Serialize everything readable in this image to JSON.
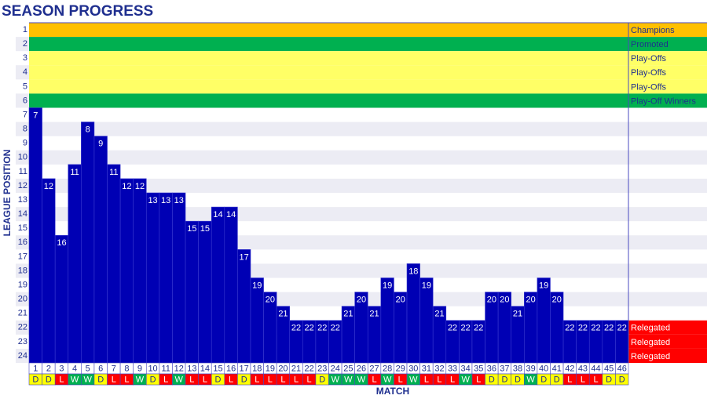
{
  "chart_data": {
    "type": "position-bar",
    "title": "SEASON PROGRESS",
    "x_label": "MATCH",
    "y_label": "LEAGUE POSITION",
    "categories": [
      1,
      2,
      3,
      4,
      5,
      6,
      7,
      8,
      9,
      10,
      11,
      12,
      13,
      14,
      15,
      16,
      17,
      18,
      19,
      20,
      21,
      22,
      23,
      24,
      25,
      26,
      27,
      28,
      29,
      30,
      31,
      32,
      33,
      34,
      35,
      36,
      37,
      38,
      39,
      40,
      41,
      42,
      43,
      44,
      45,
      46
    ],
    "values": [
      7,
      12,
      16,
      11,
      8,
      9,
      11,
      12,
      12,
      13,
      13,
      13,
      15,
      15,
      14,
      14,
      17,
      19,
      20,
      21,
      22,
      22,
      22,
      22,
      21,
      20,
      21,
      19,
      20,
      18,
      19,
      21,
      22,
      22,
      22,
      20,
      20,
      21,
      20,
      19,
      20,
      22,
      22,
      22,
      22,
      22
    ],
    "color": "#0000b4",
    "results": [
      "D",
      "D",
      "L",
      "W",
      "W",
      "D",
      "L",
      "L",
      "W",
      "D",
      "L",
      "W",
      "L",
      "L",
      "D",
      "L",
      "D",
      "L",
      "L",
      "L",
      "L",
      "L",
      "D",
      "W",
      "W",
      "W",
      "L",
      "W",
      "L",
      "W",
      "L",
      "L",
      "L",
      "W",
      "L",
      "D",
      "D",
      "D",
      "W",
      "D",
      "D",
      "L",
      "L",
      "L",
      "D",
      "D"
    ],
    "result_colors": {
      "W": "#00b050",
      "D": "#ffff00",
      "L": "#ff0000"
    },
    "ylim": [
      0.5,
      24.5
    ],
    "yticks": [
      1,
      2,
      3,
      4,
      5,
      6,
      7,
      8,
      9,
      10,
      11,
      12,
      13,
      14,
      15,
      16,
      17,
      18,
      19,
      20,
      21,
      22,
      23,
      24
    ],
    "zones": [
      {
        "position": 1,
        "label": "Champions",
        "color": "#ffc000"
      },
      {
        "position": 2,
        "label": "Promoted",
        "color": "#00b050"
      },
      {
        "position": 3,
        "label": "Play-Offs",
        "color": "#ffff66"
      },
      {
        "position": 4,
        "label": "Play-Offs",
        "color": "#ffff66"
      },
      {
        "position": 5,
        "label": "Play-Offs",
        "color": "#ffff66"
      },
      {
        "position": 6,
        "label": "Play-Off Winners",
        "color": "#00b050"
      },
      {
        "position": 22,
        "label": "Relegated",
        "color": "#ff0000"
      },
      {
        "position": 23,
        "label": "Relegated",
        "color": "#ff0000"
      },
      {
        "position": 24,
        "label": "Relegated",
        "color": "#ff0000"
      }
    ]
  }
}
